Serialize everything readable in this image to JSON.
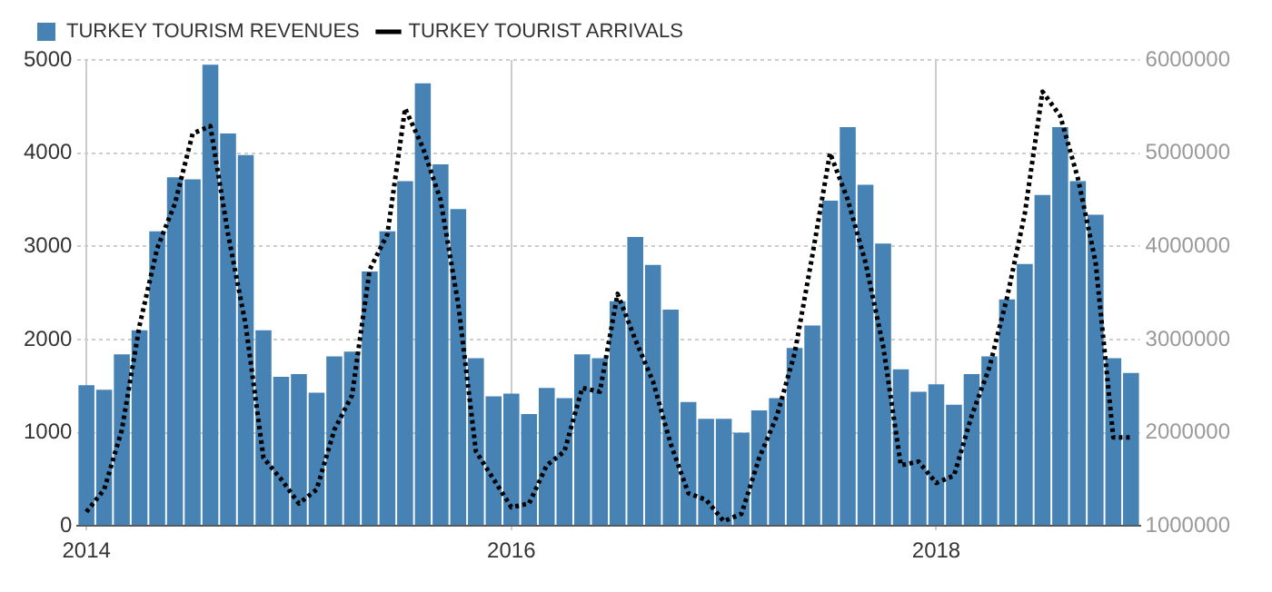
{
  "chart_data": {
    "type": "bar",
    "categories": [
      "2014",
      null,
      null,
      null,
      null,
      null,
      null,
      null,
      null,
      null,
      null,
      null,
      null,
      null,
      null,
      null,
      null,
      null,
      null,
      null,
      null,
      null,
      null,
      null,
      "2016",
      null,
      null,
      null,
      null,
      null,
      null,
      null,
      null,
      null,
      null,
      null,
      null,
      null,
      null,
      null,
      null,
      null,
      null,
      null,
      null,
      null,
      null,
      null,
      "2018",
      null,
      null,
      null,
      null,
      null,
      null,
      null,
      null,
      null,
      null,
      null
    ],
    "series": [
      {
        "name": "TURKEY TOURISM REVENUES",
        "color": "#4682b4",
        "values": [
          1510,
          1460,
          1840,
          2100,
          3160,
          3740,
          3720,
          4950,
          4210,
          3980,
          2100,
          1600,
          1630,
          1430,
          1820,
          1870,
          2730,
          3160,
          3700,
          4750,
          3880,
          3400,
          1800,
          1390,
          1420,
          1200,
          1480,
          1370,
          1840,
          1800,
          2410,
          3100,
          2800,
          2320,
          1330,
          1150,
          1150,
          1000,
          1240,
          1370,
          1910,
          2150,
          3490,
          4280,
          3660,
          3030,
          1680,
          1440,
          1520,
          1300,
          1630,
          1820,
          2430,
          2810,
          3550,
          4280,
          3700,
          3340,
          1800,
          1640
        ]
      },
      {
        "name": "TURKEY TOURIST ARRIVALS",
        "type": "line",
        "axis": "y2",
        "color": "#000000",
        "line_style": "dotted",
        "values": [
          1150000,
          1390000,
          2030000,
          3150000,
          3980000,
          4460000,
          5210000,
          5290000,
          4130000,
          3150000,
          1730000,
          1500000,
          1240000,
          1390000,
          2030000,
          2400000,
          3750000,
          4130000,
          5480000,
          5060000,
          4500000,
          3380000,
          1800000,
          1500000,
          1200000,
          1240000,
          1650000,
          1800000,
          2480000,
          2440000,
          3490000,
          3000000,
          2550000,
          1880000,
          1350000,
          1280000,
          1050000,
          1130000,
          1730000,
          2180000,
          2850000,
          3900000,
          5000000,
          4500000,
          3830000,
          2930000,
          1650000,
          1690000,
          1460000,
          1540000,
          2180000,
          2700000,
          3450000,
          4350000,
          5660000,
          5400000,
          4730000,
          3830000,
          1950000,
          1950000
        ]
      }
    ],
    "ylim": [
      0,
      5000
    ],
    "yticks": [
      0,
      1000,
      2000,
      3000,
      4000,
      5000
    ],
    "y2lim": [
      1000000,
      6000000
    ],
    "y2ticks": [
      1000000,
      2000000,
      3000000,
      4000000,
      5000000,
      6000000
    ],
    "grid": true,
    "legend": "top left"
  }
}
